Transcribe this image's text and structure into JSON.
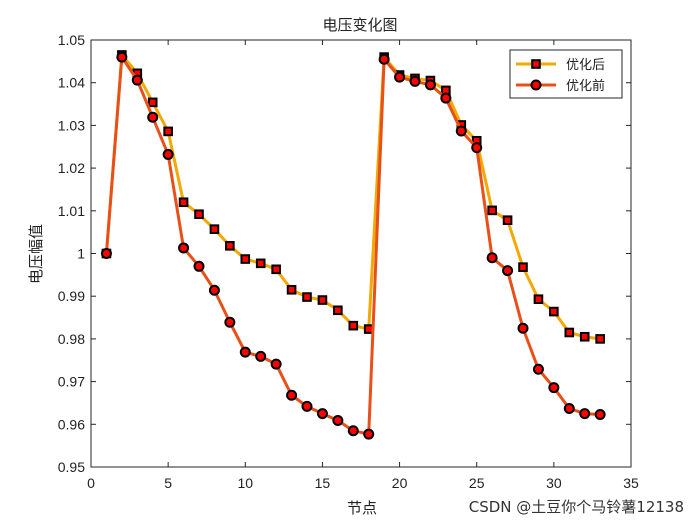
{
  "watermark": "CSDN @土豆你个马铃薯12138",
  "colors": {
    "series_after": "#F2A900",
    "series_before": "#E8501A",
    "marker_fill": "#FF0000",
    "marker_edge": "#000000"
  },
  "chart_data": {
    "type": "line",
    "title": "电压变化图",
    "xlabel": "节点",
    "ylabel": "电压幅值",
    "xlim": [
      0,
      35
    ],
    "ylim": [
      0.95,
      1.05
    ],
    "xticks": [
      0,
      5,
      10,
      15,
      20,
      25,
      30,
      35
    ],
    "yticks": [
      0.95,
      0.96,
      0.97,
      0.98,
      0.99,
      1,
      1.01,
      1.02,
      1.03,
      1.04,
      1.05
    ],
    "xtick_labels": [
      "0",
      "5",
      "10",
      "15",
      "20",
      "25",
      "30",
      "35"
    ],
    "ytick_labels": [
      "0.95",
      "0.96",
      "0.97",
      "0.98",
      "0.99",
      "1",
      "1.01",
      "1.02",
      "1.03",
      "1.04",
      "1.05"
    ],
    "grid": false,
    "legend_position": "top-right",
    "x": [
      1,
      2,
      3,
      4,
      5,
      6,
      7,
      8,
      9,
      10,
      11,
      12,
      13,
      14,
      15,
      16,
      17,
      18,
      19,
      20,
      21,
      22,
      23,
      24,
      25,
      26,
      27,
      28,
      29,
      30,
      31,
      32,
      33
    ],
    "series": [
      {
        "name": "优化后",
        "marker": "square",
        "values": [
          1.0,
          1.0465,
          1.0422,
          1.0354,
          1.0286,
          1.012,
          1.0092,
          1.0057,
          1.0018,
          0.9987,
          0.9977,
          0.9963,
          0.9915,
          0.9898,
          0.9891,
          0.9867,
          0.9831,
          0.9823,
          1.046,
          1.0418,
          1.041,
          1.0405,
          1.0382,
          1.0301,
          1.0264,
          1.0101,
          1.0078,
          0.9968,
          0.9893,
          0.9864,
          0.9815,
          0.9805,
          0.98
        ]
      },
      {
        "name": "优化前",
        "marker": "circle",
        "values": [
          1.0,
          1.046,
          1.0406,
          1.0319,
          1.0232,
          1.0013,
          0.997,
          0.9914,
          0.9839,
          0.9769,
          0.9759,
          0.9741,
          0.9668,
          0.9642,
          0.9625,
          0.9609,
          0.9585,
          0.9577,
          1.0455,
          1.0413,
          1.0403,
          1.0395,
          1.0364,
          1.0287,
          1.0248,
          0.999,
          0.996,
          0.9825,
          0.9729,
          0.9686,
          0.9637,
          0.9625,
          0.9623
        ]
      }
    ]
  }
}
